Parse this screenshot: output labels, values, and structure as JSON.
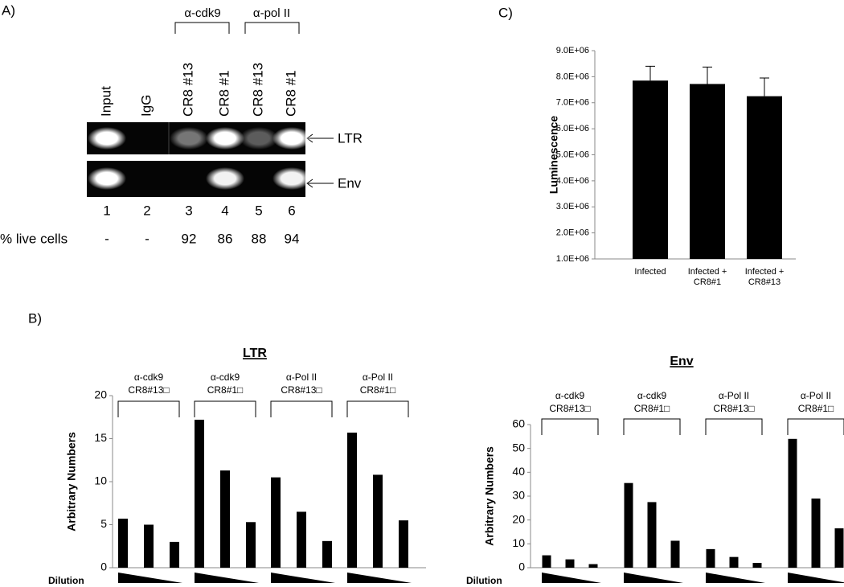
{
  "panel_labels": [
    "A)",
    "B)",
    "C)"
  ],
  "gel": {
    "antibodies": [
      "α-cdk9",
      "α-pol II"
    ],
    "lanes": [
      "Input",
      "IgG",
      "CR8 #13",
      "CR8 #1",
      "CR8 #13",
      "CR8 #1"
    ],
    "bands": [
      "LTR",
      "Env"
    ],
    "lane_numbers": [
      "1",
      "2",
      "3",
      "4",
      "5",
      "6"
    ],
    "live_cells_label": "% live cells",
    "live_cells": [
      "-",
      "-",
      "92",
      "86",
      "88",
      "94"
    ]
  },
  "chart_data": [
    {
      "type": "bar",
      "ylabel": "Luminescence",
      "categories": [
        "Infected",
        "Infected + CR8#1",
        "Infected + CR8#13"
      ],
      "values": [
        7850000,
        7720000,
        7250000
      ],
      "errors": [
        550000,
        650000,
        700000
      ],
      "color": "#000000",
      "ylim": [
        1000000,
        9000000
      ],
      "yticks": [
        {
          "value": 1000000,
          "label": "1.0E+06"
        },
        {
          "value": 2000000,
          "label": "2.0E+06"
        },
        {
          "value": 3000000,
          "label": "3.0E+06"
        },
        {
          "value": 4000000,
          "label": "4.0E+06"
        },
        {
          "value": 5000000,
          "label": "5.0E+06"
        },
        {
          "value": 6000000,
          "label": "6.0E+06"
        },
        {
          "value": 7000000,
          "label": "7.0E+06"
        },
        {
          "value": 8000000,
          "label": "8.0E+06"
        },
        {
          "value": 9000000,
          "label": "9.0E+06"
        }
      ]
    },
    {
      "type": "grouped",
      "title": "LTR",
      "ylabel": "Arbitrary Numbers",
      "xlabel": "Dilution",
      "groups": [
        {
          "antibody": "α-cdk9",
          "sample": "CR8#13□"
        },
        {
          "antibody": "α-cdk9",
          "sample": "CR8#1□"
        },
        {
          "antibody": "α-Pol II",
          "sample": "CR8#13□"
        },
        {
          "antibody": "α-Pol II",
          "sample": "CR8#1□"
        }
      ],
      "values": [
        5.7,
        5.0,
        3.0,
        17.2,
        11.3,
        5.3,
        10.5,
        6.5,
        3.1,
        15.7,
        10.8,
        5.5
      ],
      "color": "#000000",
      "ylim": [
        0,
        20
      ],
      "yticks": [
        0,
        5,
        10,
        15,
        20
      ]
    },
    {
      "type": "grouped",
      "title": "Env",
      "ylabel": "Arbitrary Numbers",
      "xlabel": "Dilution",
      "groups": [
        {
          "antibody": "α-cdk9",
          "sample": "CR8#13□"
        },
        {
          "antibody": "α-cdk9",
          "sample": "CR8#1□"
        },
        {
          "antibody": "α-Pol II",
          "sample": "CR8#13□"
        },
        {
          "antibody": "α-Pol II",
          "sample": "CR8#1□"
        }
      ],
      "values": [
        5.2,
        3.5,
        1.5,
        35.5,
        27.5,
        11.3,
        7.8,
        4.5,
        2.0,
        54,
        29,
        16.5
      ],
      "color": "#000000",
      "ylim": [
        0,
        60
      ],
      "yticks": [
        0,
        10,
        20,
        30,
        40,
        50,
        60
      ]
    }
  ]
}
